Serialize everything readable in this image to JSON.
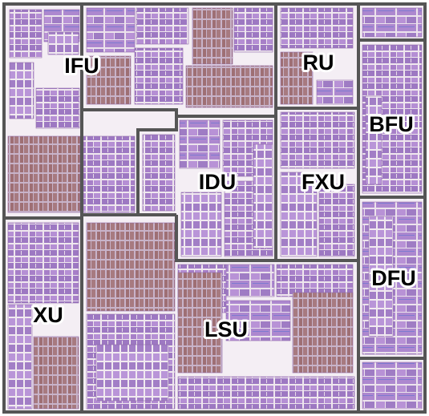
{
  "units": [
    {
      "id": "ifu",
      "label": "IFU"
    },
    {
      "id": "ru",
      "label": "RU"
    },
    {
      "id": "bfu",
      "label": "BFU"
    },
    {
      "id": "idu",
      "label": "IDU"
    },
    {
      "id": "fxu",
      "label": "FXU"
    },
    {
      "id": "dfu",
      "label": "DFU"
    },
    {
      "id": "xu",
      "label": "XU"
    },
    {
      "id": "lsu",
      "label": "LSU"
    }
  ],
  "colors": {
    "background": "#f4eef4",
    "block_purple": "#a77fc8",
    "block_light": "#b995d8",
    "block_brown": "#9e6f74",
    "boundary": "#555555"
  }
}
